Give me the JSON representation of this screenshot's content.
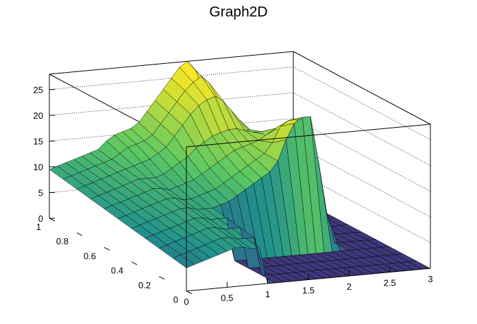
{
  "chart_data": {
    "type": "surface",
    "title": "Graph2D",
    "x": {
      "range": [
        0,
        3
      ],
      "ticks": [
        0,
        0.5,
        1,
        1.5,
        2,
        2.5,
        3
      ],
      "tick_labels": [
        "0",
        "0.5",
        "1",
        "1.5",
        "2",
        "2.5",
        "3"
      ]
    },
    "y": {
      "range": [
        0,
        1
      ],
      "ticks": [
        0,
        0.2,
        0.4,
        0.6,
        0.8,
        1
      ],
      "tick_labels": [
        "0",
        "0.2",
        "0.4",
        "0.6",
        "0.8",
        "1"
      ]
    },
    "z": {
      "range": [
        0,
        28
      ],
      "ticks": [
        0,
        5,
        10,
        15,
        20,
        25
      ],
      "tick_labels": [
        "0",
        "5",
        "10",
        "15",
        "20",
        "25"
      ]
    },
    "grid": "dotted on back walls",
    "colormap": "viridis-like (blue to yellow by height)",
    "zero_region": "x > 1.1 and y < 0.4",
    "y_grid_values": [
      0,
      0.1,
      0.2,
      0.3,
      0.4,
      0.5,
      0.6,
      0.7,
      0.8,
      0.9,
      1.0
    ],
    "x_grid_values": [
      0,
      0.1,
      0.2,
      0.3,
      0.4,
      0.5,
      0.6,
      0.7,
      0.8,
      0.9,
      1.0,
      1.1,
      1.2,
      1.3,
      1.4,
      1.5,
      1.6,
      1.7,
      1.8,
      1.9,
      2.0,
      2.1,
      2.2,
      2.3,
      2.4,
      2.5,
      2.6,
      2.7,
      2.8,
      2.9,
      3.0
    ],
    "z_values": [
      [
        4.5,
        5,
        5.5,
        6,
        6.5,
        7,
        7.5,
        7.5,
        7,
        7,
        0,
        0,
        0,
        0,
        0,
        0,
        0,
        0,
        0,
        0,
        0,
        0,
        0,
        0,
        0,
        0,
        0,
        0,
        0,
        0,
        0
      ],
      [
        5,
        5.5,
        6,
        6.5,
        7,
        7.5,
        8,
        8,
        7.5,
        7.5,
        7.5,
        0,
        0,
        0,
        0,
        0,
        0,
        0,
        0,
        0,
        0,
        0,
        0,
        0,
        0,
        0,
        0,
        0,
        0,
        0,
        0
      ],
      [
        5.5,
        6,
        6.5,
        7,
        7.5,
        8,
        8.5,
        8.5,
        8,
        8,
        8,
        0,
        0,
        0,
        0,
        0,
        0,
        0,
        0,
        0,
        0,
        0,
        0,
        0,
        0,
        0,
        0,
        0,
        0,
        0,
        0
      ],
      [
        6,
        6.5,
        7,
        7.5,
        8,
        8.5,
        9,
        9,
        8.5,
        8.5,
        8.5,
        0,
        0,
        0,
        0,
        0,
        0,
        0,
        0,
        0,
        0,
        0,
        0,
        0,
        0,
        0,
        0,
        0,
        0,
        0,
        0
      ],
      [
        6.5,
        7,
        7.5,
        8,
        8.5,
        9,
        9.5,
        9.5,
        9,
        9,
        9,
        9.5,
        10,
        11,
        12,
        13,
        14,
        15,
        17,
        21,
        24,
        25,
        25,
        16,
        6,
        0,
        0,
        0,
        0,
        0,
        0
      ],
      [
        7,
        7.5,
        8,
        8.5,
        9,
        9.5,
        10,
        10,
        9.5,
        9.5,
        10,
        10.5,
        11,
        12,
        13,
        14,
        15,
        16,
        17,
        19,
        22,
        23,
        23,
        15,
        6,
        0,
        0,
        0,
        0,
        0,
        0
      ],
      [
        7.5,
        8,
        8.5,
        9,
        9.5,
        10,
        10.5,
        10.5,
        10,
        10.5,
        11,
        11.5,
        12.5,
        13.5,
        14.5,
        15.5,
        16.5,
        17,
        17.5,
        18,
        19,
        20,
        19,
        13,
        5,
        0,
        0,
        0,
        0,
        0,
        0
      ],
      [
        8,
        8.5,
        9,
        9.5,
        10,
        10.5,
        11,
        11,
        11,
        11.5,
        12.5,
        13.5,
        14.5,
        16,
        17,
        18,
        18.5,
        19,
        19,
        18.5,
        18,
        18,
        16,
        10,
        4,
        0,
        0,
        0,
        0,
        0,
        0
      ],
      [
        8.5,
        9,
        9.5,
        10,
        10.5,
        11,
        11.5,
        12,
        12.5,
        13,
        14,
        15,
        17,
        19,
        21,
        22.5,
        23.5,
        24,
        23,
        21,
        19,
        17,
        14,
        8,
        3,
        0,
        0,
        0,
        0,
        0,
        0
      ],
      [
        9,
        9.5,
        10,
        10.5,
        11,
        11.5,
        12,
        13,
        14,
        14.5,
        15,
        16,
        18,
        20,
        22,
        24,
        25.5,
        26.5,
        25,
        22,
        19,
        16,
        12,
        6,
        2,
        0,
        0,
        0,
        0,
        0,
        0
      ],
      [
        9.5,
        10,
        10.5,
        11,
        11.5,
        12,
        12.5,
        14,
        15,
        15.5,
        16,
        17,
        19,
        21,
        23,
        25,
        27,
        28,
        26,
        22,
        18,
        14,
        10,
        5,
        2,
        0,
        0,
        0,
        0,
        0,
        0
      ]
    ]
  }
}
